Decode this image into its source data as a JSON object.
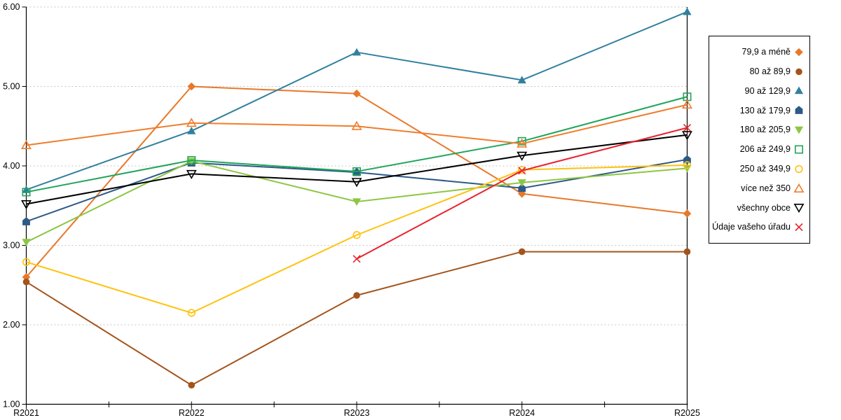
{
  "chart_data": {
    "type": "line",
    "title": "",
    "xlabel": "",
    "ylabel": "",
    "categories": [
      "R2021",
      "R2022",
      "R2023",
      "R2024",
      "R2025"
    ],
    "ylim": [
      1.0,
      6.0
    ],
    "ytick_step": 1.0,
    "ytick_labels": [
      "1.00",
      "2.00",
      "3.00",
      "4.00",
      "5.00",
      "6.00"
    ],
    "grid": "horizontal-dashed",
    "gridline_color": "#c6c6c6",
    "axis_color": "#000000",
    "legend_position": "right",
    "series": [
      {
        "name": "79,9 a méně",
        "color": "#E8782A",
        "marker": "diamond",
        "fill": "solid",
        "values": [
          2.6,
          5.0,
          4.91,
          3.65,
          3.4
        ]
      },
      {
        "name": "80 až 89,9",
        "color": "#A4541B",
        "marker": "circle",
        "fill": "solid",
        "values": [
          2.54,
          1.24,
          2.37,
          2.92,
          2.92
        ]
      },
      {
        "name": "90 až 129,9",
        "color": "#31809E",
        "marker": "triangle-up",
        "fill": "solid",
        "values": [
          3.7,
          4.44,
          5.43,
          5.08,
          5.94
        ]
      },
      {
        "name": "130 až 179,9",
        "color": "#2D5A87",
        "marker": "pentagon",
        "fill": "solid",
        "values": [
          3.3,
          4.04,
          3.92,
          3.72,
          4.08
        ]
      },
      {
        "name": "180 až 205,9",
        "color": "#8DC642",
        "marker": "triangle-down",
        "fill": "solid",
        "values": [
          3.04,
          4.06,
          3.55,
          3.79,
          3.97
        ]
      },
      {
        "name": "206 až 249,9",
        "color": "#1FA55A",
        "marker": "square",
        "fill": "open",
        "values": [
          3.67,
          4.07,
          3.93,
          4.31,
          4.87
        ]
      },
      {
        "name": "250 až 349,9",
        "color": "#FFC20E",
        "marker": "circle",
        "fill": "open",
        "values": [
          2.79,
          2.15,
          3.13,
          3.95,
          4.01
        ]
      },
      {
        "name": "více než 350",
        "color": "#F07D2D",
        "marker": "triangle-up",
        "fill": "open",
        "values": [
          4.26,
          4.54,
          4.5,
          4.28,
          4.77
        ]
      },
      {
        "name": "všechny obce",
        "color": "#000000",
        "marker": "triangle-down",
        "fill": "open",
        "values": [
          3.52,
          3.9,
          3.8,
          4.13,
          4.39
        ]
      },
      {
        "name": "Údaje vašeho úřadu",
        "color": "#E8232E",
        "marker": "x",
        "fill": "open",
        "values": [
          null,
          null,
          2.83,
          3.94,
          4.48
        ]
      }
    ]
  }
}
